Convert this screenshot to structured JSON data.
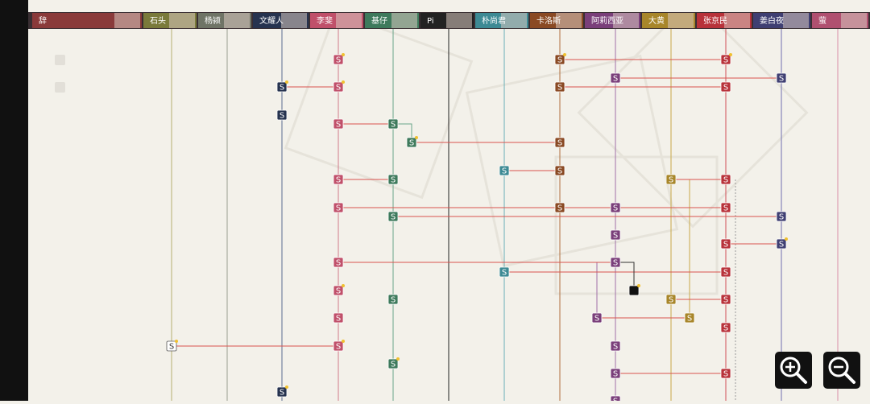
{
  "header": {
    "characters": [
      "辞",
      "石头",
      "杨颍",
      "文耀人",
      "李斐",
      "基仔",
      "Pi",
      "朴尚君",
      "卡洛斯",
      "阿莉西亚",
      "大黄",
      "张京民",
      "姜白夜",
      "萤"
    ]
  },
  "node": {
    "label": "S"
  }
}
